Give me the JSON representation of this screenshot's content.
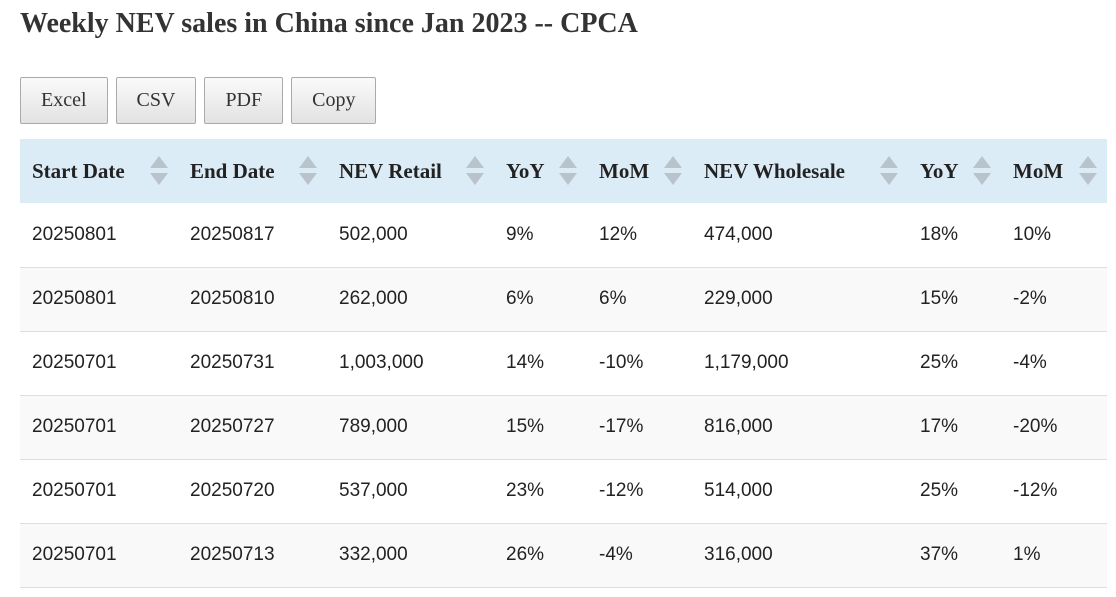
{
  "header": {
    "title": "Weekly NEV sales in China since Jan 2023 -- CPCA"
  },
  "buttons": [
    "Excel",
    "CSV",
    "PDF",
    "Copy"
  ],
  "table": {
    "columns": [
      "Start Date",
      "End Date",
      "NEV Retail",
      "YoY",
      "MoM",
      "NEV Wholesale",
      "YoY",
      "MoM"
    ],
    "rows": [
      [
        "20250801",
        "20250817",
        "502,000",
        "9%",
        "12%",
        "474,000",
        "18%",
        "10%"
      ],
      [
        "20250801",
        "20250810",
        "262,000",
        "6%",
        "6%",
        "229,000",
        "15%",
        "-2%"
      ],
      [
        "20250701",
        "20250731",
        "1,003,000",
        "14%",
        "-10%",
        "1,179,000",
        "25%",
        "-4%"
      ],
      [
        "20250701",
        "20250727",
        "789,000",
        "15%",
        "-17%",
        "816,000",
        "17%",
        "-20%"
      ],
      [
        "20250701",
        "20250720",
        "537,000",
        "23%",
        "-12%",
        "514,000",
        "25%",
        "-12%"
      ],
      [
        "20250701",
        "20250713",
        "332,000",
        "26%",
        "-4%",
        "316,000",
        "37%",
        "1%"
      ]
    ]
  }
}
